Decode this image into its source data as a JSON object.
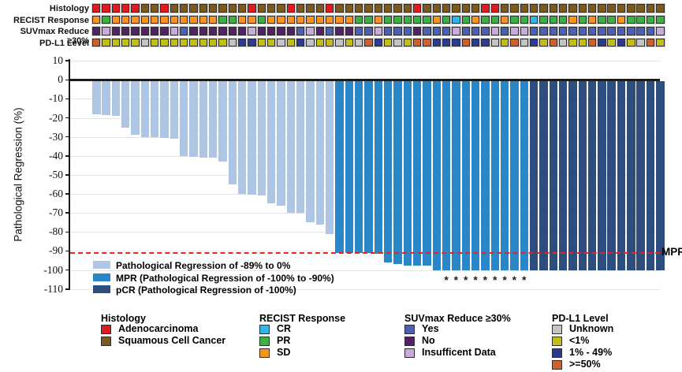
{
  "tracks": {
    "row_labels": [
      "Histology",
      "RECIST Response",
      "SUVmax Reduce ≥30%",
      "PD-L1 Level"
    ],
    "histology": [
      "A",
      "A",
      "A",
      "A",
      "A",
      "S",
      "S",
      "A",
      "S",
      "S",
      "S",
      "S",
      "S",
      "S",
      "S",
      "S",
      "A",
      "S",
      "S",
      "S",
      "A",
      "S",
      "S",
      "S",
      "A",
      "S",
      "S",
      "S",
      "S",
      "S",
      "S",
      "S",
      "S",
      "A",
      "S",
      "S",
      "S",
      "S",
      "S",
      "S",
      "A",
      "A",
      "S",
      "S",
      "S",
      "S",
      "S",
      "S",
      "S",
      "S",
      "S",
      "S",
      "S",
      "S",
      "S",
      "S",
      "S",
      "S",
      "S"
    ],
    "recist": [
      "SD",
      "PR",
      "SD",
      "SD",
      "SD",
      "SD",
      "SD",
      "SD",
      "SD",
      "SD",
      "SD",
      "SD",
      "SD",
      "PR",
      "PR",
      "SD",
      "SD",
      "PR",
      "SD",
      "SD",
      "SD",
      "SD",
      "SD",
      "SD",
      "SD",
      "SD",
      "SD",
      "PR",
      "PR",
      "SD",
      "PR",
      "PR",
      "PR",
      "PR",
      "PR",
      "SD",
      "PR",
      "CR",
      "PR",
      "SD",
      "PR",
      "PR",
      "SD",
      "PR",
      "PR",
      "CR",
      "PR",
      "PR",
      "PR",
      "SD",
      "PR",
      "SD",
      "PR",
      "PR",
      "SD",
      "PR",
      "PR",
      "PR",
      "PR"
    ],
    "suvmax": [
      "No",
      "ID",
      "No",
      "No",
      "No",
      "No",
      "No",
      "No",
      "ID",
      "Yes",
      "No",
      "No",
      "No",
      "No",
      "No",
      "No",
      "ID",
      "No",
      "No",
      "No",
      "No",
      "Yes",
      "ID",
      "No",
      "Yes",
      "No",
      "No",
      "Yes",
      "Yes",
      "ID",
      "Yes",
      "Yes",
      "Yes",
      "No",
      "Yes",
      "Yes",
      "Yes",
      "ID",
      "Yes",
      "Yes",
      "Yes",
      "ID",
      "Yes",
      "ID",
      "ID",
      "Yes",
      "Yes",
      "Yes",
      "Yes",
      "Yes",
      "Yes",
      "Yes",
      "Yes",
      "Yes",
      "Yes",
      "Yes",
      "Yes",
      "Yes",
      "ID"
    ],
    "pdl1": [
      "O",
      "L",
      "L",
      "L",
      "L",
      "U",
      "L",
      "L",
      "L",
      "L",
      "L",
      "L",
      "L",
      "L",
      "U",
      "N",
      "N",
      "L",
      "L",
      "U",
      "L",
      "N",
      "U",
      "L",
      "L",
      "U",
      "L",
      "U",
      "O",
      "N",
      "L",
      "U",
      "L",
      "O",
      "O",
      "N",
      "N",
      "N",
      "O",
      "N",
      "N",
      "U",
      "L",
      "O",
      "U",
      "N",
      "L",
      "O",
      "U",
      "L",
      "L",
      "O",
      "N",
      "L",
      "N",
      "L",
      "U",
      "O",
      "L"
    ],
    "palette": {
      "histology": {
        "A": "#e01b20",
        "S": "#7a5a20"
      },
      "recist": {
        "CR": "#35b4e9",
        "PR": "#3cb044",
        "SD": "#f7941d"
      },
      "suvmax": {
        "Yes": "#4d5fb0",
        "No": "#512366",
        "ID": "#c6abdb"
      },
      "pdl1": {
        "U": "#c4c4c4",
        "L": "#c2bd17",
        "N": "#2b3b92",
        "O": "#cf5f2d"
      }
    }
  },
  "chart_data": {
    "type": "bar",
    "title": "",
    "xlabel": "",
    "ylabel": "Pathological Regression (%)",
    "ylim": [
      -110,
      10
    ],
    "yticks": [
      10,
      0,
      -10,
      -20,
      -30,
      -40,
      -50,
      -60,
      -70,
      -80,
      -90,
      -100,
      -110
    ],
    "grid": "horizontal",
    "n_patients": 59,
    "values": [
      -18,
      -18.5,
      -19,
      -25,
      -29,
      -30,
      -30,
      -30.5,
      -31,
      -40,
      -40.5,
      -41,
      -41,
      -43,
      -55,
      -60,
      -60.5,
      -61,
      -65,
      -66,
      -70,
      -70,
      -75,
      -76,
      -81,
      -91,
      -91,
      -91,
      -91,
      -91.5,
      -96,
      -97,
      -97.5,
      -97.5,
      -97.5,
      -100,
      -100,
      -100,
      -100,
      -100,
      -100,
      -100,
      -100,
      -100,
      -100,
      -100,
      -100,
      -100,
      -100,
      -100,
      -100,
      -100,
      -100,
      -100,
      -100,
      -100,
      -100,
      -100,
      -100
    ],
    "group_bounds": {
      "regression_last_col": 25,
      "mpr_last_col": 45
    },
    "group_colors": {
      "regression": "#aec6e3",
      "mpr": "#2987c8",
      "pcr": "#2d4d7d"
    },
    "asterisk_columns": [
      37,
      38,
      39,
      40,
      41,
      42,
      43,
      44,
      45
    ],
    "asterisk_char": "*",
    "mpr_line": {
      "value": -91,
      "label": "MPR",
      "color": "#ed2024"
    },
    "inner_legend": [
      {
        "key": "regression",
        "label": "Pathological Regression of -89% to 0%"
      },
      {
        "key": "mpr",
        "label": "MPR (Pathological Regression of -100% to -90%)"
      },
      {
        "key": "pcr",
        "label": "pCR (Pathological Regression of -100%)"
      }
    ]
  },
  "bottom_legends": [
    {
      "title": "Histology",
      "items": [
        {
          "label": "Adenocarcinoma",
          "color": "#e01b20"
        },
        {
          "label": "Squamous Cell Cancer",
          "color": "#7a5a20"
        }
      ]
    },
    {
      "title": "RECIST Response",
      "items": [
        {
          "label": "CR",
          "color": "#35b4e9"
        },
        {
          "label": "PR",
          "color": "#3cb044"
        },
        {
          "label": "SD",
          "color": "#f7941d"
        }
      ]
    },
    {
      "title": "SUVmax Reduce ≥30%",
      "items": [
        {
          "label": "Yes",
          "color": "#4d5fb0"
        },
        {
          "label": "No",
          "color": "#512366"
        },
        {
          "label": "Insufficent Data",
          "color": "#c6abdb"
        }
      ]
    },
    {
      "title": "PD-L1 Level",
      "items": [
        {
          "label": "Unknown",
          "color": "#c4c4c4"
        },
        {
          "label": "<1%",
          "color": "#c2bd17"
        },
        {
          "label": "1% - 49%",
          "color": "#2b3b92"
        },
        {
          "label": ">=50%",
          "color": "#cf5f2d"
        }
      ]
    }
  ]
}
